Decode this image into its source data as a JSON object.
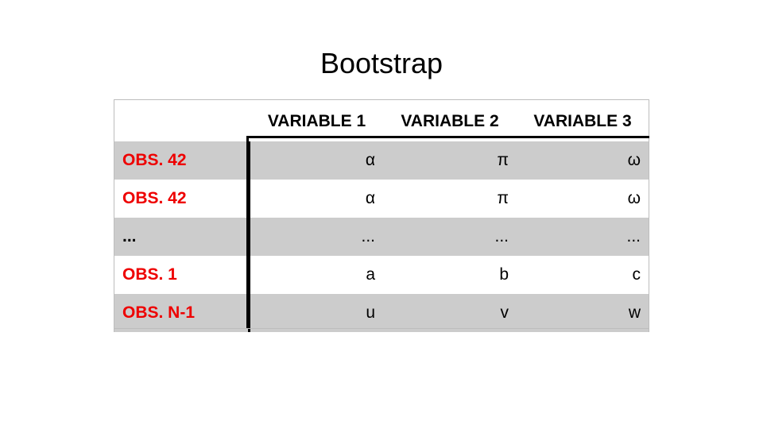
{
  "slide": {
    "title": "Bootstrap"
  },
  "table": {
    "columns": [
      "VARIABLE 1",
      "VARIABLE 2",
      "VARIABLE 3"
    ],
    "rows": [
      {
        "label": "OBS. 42",
        "values": [
          "α",
          "π",
          "ω"
        ],
        "label_color": "#ee0000",
        "shaded": true
      },
      {
        "label": "OBS. 42",
        "values": [
          "α",
          "π",
          "ω"
        ],
        "label_color": "#ee0000",
        "shaded": false
      },
      {
        "label": "...",
        "values": [
          "...",
          "...",
          "..."
        ],
        "label_color": "#000000",
        "shaded": true
      },
      {
        "label": "OBS. 1",
        "values": [
          "a",
          "b",
          "c"
        ],
        "label_color": "#ee0000",
        "shaded": false
      },
      {
        "label": "OBS. N-1",
        "values": [
          "u",
          "v",
          "w"
        ],
        "label_color": "#ee0000",
        "shaded": true
      }
    ]
  },
  "colors": {
    "row_label_highlight": "#ee0000",
    "shaded_row": "#cccccc"
  }
}
